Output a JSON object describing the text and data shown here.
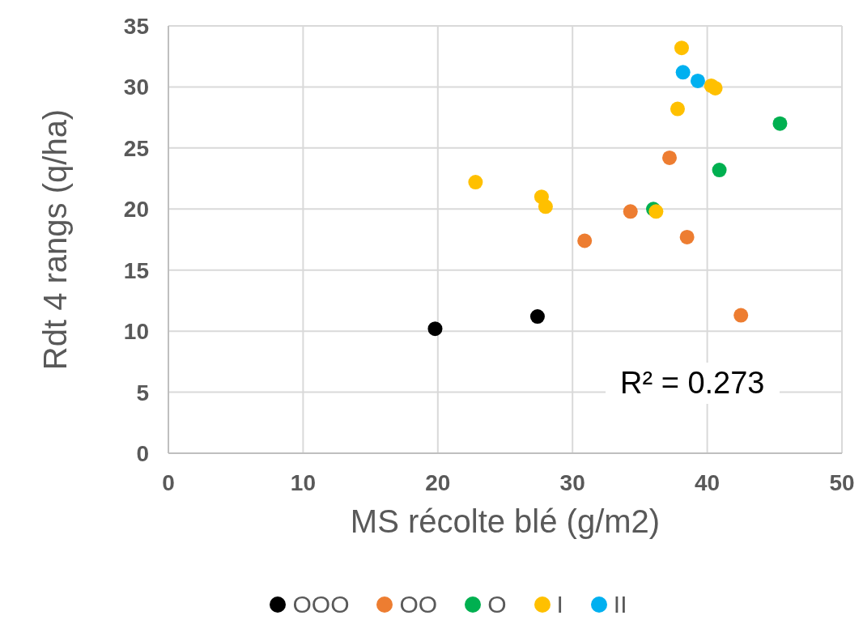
{
  "chart_data": {
    "type": "scatter",
    "xlabel": "MS récolte blé (g/m2)",
    "ylabel": "Rdt 4 rangs (q/ha)",
    "xlim": [
      0,
      50
    ],
    "xticks": [
      0,
      10,
      20,
      30,
      40,
      50
    ],
    "ylim": [
      0,
      35
    ],
    "yticks": [
      0,
      5,
      10,
      15,
      20,
      25,
      30,
      35
    ],
    "grid": true,
    "legend": "bottom",
    "marker": "circle",
    "annotations": [
      "R² = 0.273"
    ],
    "series": [
      {
        "name": "OOO",
        "color": "#000000",
        "x": [
          19.8,
          27.4
        ],
        "values": [
          10.2,
          11.2
        ]
      },
      {
        "name": "OO",
        "color": "#ed7d31",
        "x": [
          37.2,
          34.3,
          30.9,
          38.5,
          42.5
        ],
        "values": [
          24.2,
          19.8,
          17.4,
          17.7,
          11.3
        ]
      },
      {
        "name": "O",
        "color": "#00b050",
        "x": [
          45.4,
          40.9,
          36.0
        ],
        "values": [
          27.0,
          23.2,
          20.0
        ]
      },
      {
        "name": "I",
        "color": "#ffc000",
        "x": [
          38.1,
          40.3,
          40.6,
          37.8,
          22.8,
          27.7,
          28.0,
          36.2
        ],
        "values": [
          33.2,
          30.1,
          29.9,
          28.2,
          22.2,
          21.0,
          20.2,
          19.8
        ]
      },
      {
        "name": "II",
        "color": "#00b0f0",
        "x": [
          38.2,
          39.3
        ],
        "values": [
          31.2,
          30.5
        ]
      }
    ]
  }
}
